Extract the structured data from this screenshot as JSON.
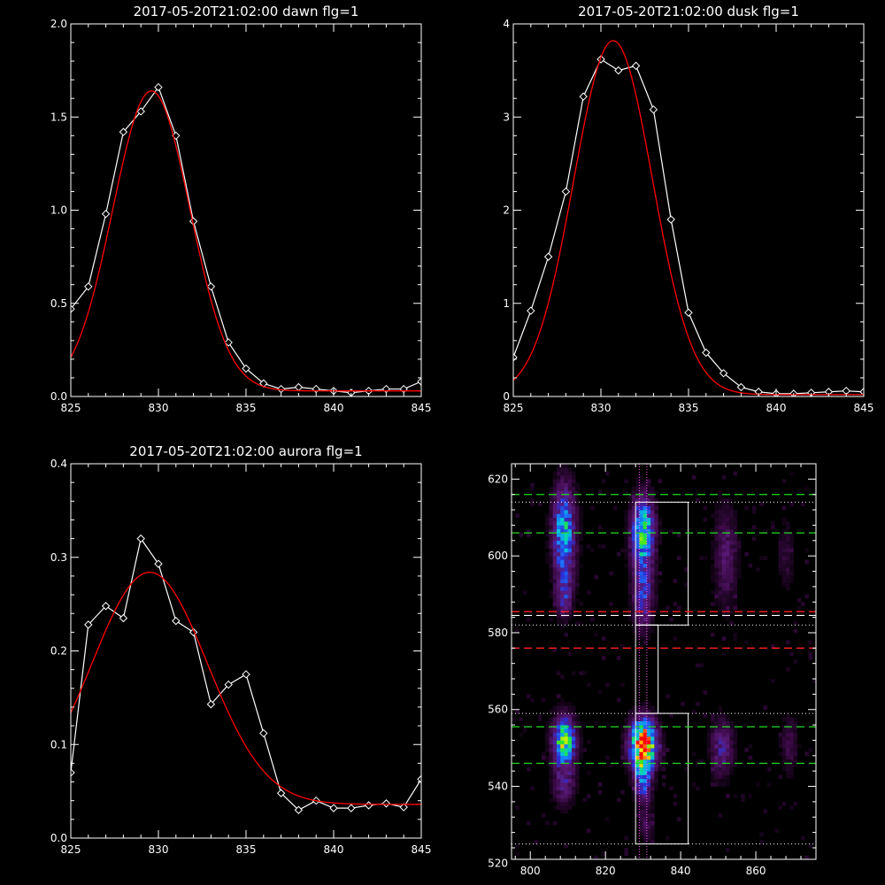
{
  "chart_data": [
    {
      "type": "line",
      "title": "2017-05-20T21:02:00 dawn flg=1",
      "xlim": [
        825,
        845
      ],
      "ylim": [
        0,
        2.0
      ],
      "xticks": [
        "825",
        "830",
        "835",
        "840",
        "845"
      ],
      "yticks": [
        "0.0",
        "0.5",
        "1.0",
        "1.5",
        "2.0"
      ],
      "series": [
        {
          "color": "#ffffff",
          "marker": "diamond",
          "x": [
            825,
            826,
            827,
            828,
            829,
            830,
            831,
            832,
            833,
            834,
            835,
            836,
            837,
            838,
            839,
            840,
            841,
            842,
            843,
            844,
            845
          ],
          "y": [
            0.47,
            0.59,
            0.98,
            1.42,
            1.53,
            1.66,
            1.4,
            0.94,
            0.59,
            0.29,
            0.15,
            0.07,
            0.04,
            0.05,
            0.04,
            0.03,
            0.02,
            0.03,
            0.04,
            0.04,
            0.08
          ]
        },
        {
          "color": "#ff0000",
          "fit": "gaussian",
          "amp": 1.61,
          "center": 829.6,
          "sigma": 2.2,
          "base": 0.03,
          "xrange": [
            825,
            845
          ]
        }
      ]
    },
    {
      "type": "line",
      "title": "2017-05-20T21:02:00 dusk flg=1",
      "xlim": [
        825,
        845
      ],
      "ylim": [
        0,
        4
      ],
      "xticks": [
        "825",
        "830",
        "835",
        "840",
        "845"
      ],
      "yticks": [
        "0",
        "1",
        "2",
        "3",
        "4"
      ],
      "series": [
        {
          "color": "#ffffff",
          "marker": "diamond",
          "x": [
            825,
            826,
            827,
            828,
            829,
            830,
            831,
            832,
            833,
            834,
            835,
            836,
            837,
            838,
            839,
            840,
            841,
            842,
            843,
            844,
            845
          ],
          "y": [
            0.42,
            0.92,
            1.5,
            2.2,
            3.22,
            3.62,
            3.5,
            3.55,
            3.08,
            1.9,
            0.9,
            0.47,
            0.25,
            0.1,
            0.05,
            0.03,
            0.03,
            0.04,
            0.05,
            0.06,
            0.05
          ]
        },
        {
          "color": "#ff0000",
          "fit": "gaussian",
          "amp": 3.8,
          "center": 830.7,
          "sigma": 2.25,
          "base": 0.02,
          "xrange": [
            825,
            845
          ]
        }
      ]
    },
    {
      "type": "line",
      "title": "2017-05-20T21:02:00 aurora flg=1",
      "xlim": [
        825,
        845
      ],
      "ylim": [
        0,
        0.4
      ],
      "xticks": [
        "825",
        "830",
        "835",
        "840",
        "845"
      ],
      "yticks": [
        "0.0",
        "0.1",
        "0.2",
        "0.3",
        "0.4"
      ],
      "series": [
        {
          "color": "#ffffff",
          "marker": "diamond",
          "x": [
            825,
            826,
            827,
            828,
            829,
            830,
            831,
            832,
            833,
            834,
            835,
            836,
            837,
            838,
            839,
            840,
            841,
            842,
            843,
            844,
            845
          ],
          "y": [
            0.07,
            0.228,
            0.248,
            0.235,
            0.32,
            0.293,
            0.232,
            0.22,
            0.143,
            0.164,
            0.175,
            0.112,
            0.048,
            0.03,
            0.04,
            0.032,
            0.032,
            0.035,
            0.037,
            0.033,
            0.063
          ]
        },
        {
          "color": "#ff0000",
          "fit": "gaussian",
          "amp": 0.248,
          "center": 829.5,
          "sigma": 3.3,
          "base": 0.036,
          "xrange": [
            825,
            845
          ]
        }
      ]
    },
    {
      "type": "heatmap",
      "title": "",
      "xlim": [
        795,
        876
      ],
      "ylim": [
        521,
        624
      ],
      "xticks": [
        "800",
        "820",
        "840",
        "860"
      ],
      "yticks": [
        "520",
        "540",
        "560",
        "580",
        "600",
        "620"
      ],
      "colormap": [
        "#000000",
        "#3a0a45",
        "#5a1a78",
        "#2d2dd0",
        "#1a78ff",
        "#00d2d2",
        "#28e628",
        "#f0f000",
        "#ff8c00",
        "#ff0000"
      ],
      "blobs": [
        {
          "x": 809,
          "y": 552,
          "sx": 2.0,
          "sy": 4.0,
          "peak": 0.68
        },
        {
          "x": 809,
          "y": 606,
          "sx": 2.0,
          "sy": 8.0,
          "peak": 0.52
        },
        {
          "x": 809,
          "y": 590,
          "sx": 1.5,
          "sy": 4.0,
          "peak": 0.25
        },
        {
          "x": 809,
          "y": 541,
          "sx": 2.0,
          "sy": 4.0,
          "peak": 0.22
        },
        {
          "x": 830,
          "y": 551,
          "sx": 2.3,
          "sy": 4.2,
          "peak": 1.0
        },
        {
          "x": 830,
          "y": 606,
          "sx": 2.0,
          "sy": 6.0,
          "peak": 0.62
        },
        {
          "x": 830,
          "y": 590,
          "sx": 1.8,
          "sy": 6.0,
          "peak": 0.32
        },
        {
          "x": 830,
          "y": 542,
          "sx": 1.5,
          "sy": 4.0,
          "peak": 0.38
        },
        {
          "x": 831,
          "y": 530,
          "sx": 1.5,
          "sy": 3.0,
          "peak": 0.12
        },
        {
          "x": 851,
          "y": 550,
          "sx": 2.0,
          "sy": 5.0,
          "peak": 0.24
        },
        {
          "x": 852,
          "y": 600,
          "sx": 2.0,
          "sy": 9.0,
          "peak": 0.17
        },
        {
          "x": 869,
          "y": 551,
          "sx": 1.5,
          "sy": 5.0,
          "peak": 0.12
        },
        {
          "x": 868,
          "y": 600,
          "sx": 1.5,
          "sy": 6.0,
          "peak": 0.09
        }
      ],
      "overlays": {
        "white_box_top": {
          "x": [
            828,
            842
          ],
          "y": [
            582,
            614
          ]
        },
        "white_box_mid": {
          "x": [
            828,
            834
          ],
          "y": [
            559,
            582
          ]
        },
        "white_box_bottom": {
          "x": [
            828,
            842
          ],
          "y": [
            525,
            559
          ]
        },
        "dotted_white_h": [
          614,
          582,
          559,
          525
        ],
        "dotted_magenta_v": [
          829,
          831
        ],
        "dashed_green_h": [
          616,
          606,
          555.5,
          546
        ],
        "dashed_red_h": [
          585.5,
          576
        ],
        "dashed_white_h": [
          584.5
        ]
      }
    }
  ]
}
